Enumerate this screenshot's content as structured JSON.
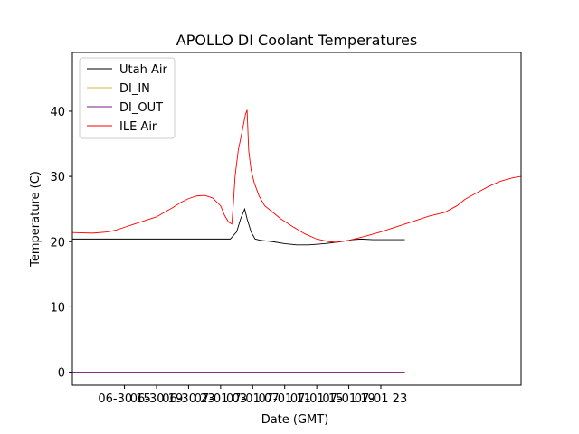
{
  "chart_data": {
    "type": "line",
    "title": "APOLLO DI Coolant Temperatures",
    "xlabel": "Date (GMT)",
    "ylabel": "Temperature (C)",
    "xlim": [
      -6.5,
      49.5
    ],
    "ylim": [
      -2,
      49
    ],
    "y_ticks": [
      0,
      10,
      20,
      30,
      40
    ],
    "x_ticks": [
      {
        "value": 0,
        "label": "06-30 15"
      },
      {
        "value": 4,
        "label": "06-30 19"
      },
      {
        "value": 8,
        "label": "06-30 23"
      },
      {
        "value": 12,
        "label": "07-01 03"
      },
      {
        "value": 16,
        "label": "07-01 07"
      },
      {
        "value": 20,
        "label": "07-01 11"
      },
      {
        "value": 24,
        "label": "07-01 15"
      },
      {
        "value": 28,
        "label": "07-01 19"
      },
      {
        "value": 32,
        "label": "07-01 23"
      }
    ],
    "legend_position": "top-left",
    "series": [
      {
        "name": "Utah Air",
        "color": "#000000",
        "points": [
          [
            -6.5,
            20.4
          ],
          [
            -2,
            20.4
          ],
          [
            0,
            20.4
          ],
          [
            2,
            20.4
          ],
          [
            4,
            20.4
          ],
          [
            6,
            20.4
          ],
          [
            8,
            20.4
          ],
          [
            10,
            20.4
          ],
          [
            12,
            20.4
          ],
          [
            13.2,
            20.4
          ],
          [
            14,
            21.5
          ],
          [
            14.5,
            23.5
          ],
          [
            15,
            25.0
          ],
          [
            15.3,
            23.5
          ],
          [
            15.8,
            21.5
          ],
          [
            16.3,
            20.4
          ],
          [
            17,
            20.2
          ],
          [
            18.5,
            20.0
          ],
          [
            20,
            19.7
          ],
          [
            21.5,
            19.5
          ],
          [
            23,
            19.5
          ],
          [
            25,
            19.7
          ],
          [
            27,
            20.0
          ],
          [
            28.5,
            20.3
          ],
          [
            29.5,
            20.4
          ],
          [
            31,
            20.3
          ],
          [
            33,
            20.3
          ],
          [
            35,
            20.3
          ]
        ]
      },
      {
        "name": "DI_IN",
        "color": "#d4b44a",
        "points": [
          [
            -6.5,
            0
          ],
          [
            35,
            0
          ]
        ]
      },
      {
        "name": "DI_OUT",
        "color": "#7b1a8a",
        "points": [
          [
            -6.5,
            0
          ],
          [
            35,
            0
          ]
        ]
      },
      {
        "name": "ILE Air",
        "color": "#ff0000",
        "points": [
          [
            -6.5,
            21.4
          ],
          [
            -4,
            21.3
          ],
          [
            -2,
            21.5
          ],
          [
            -1,
            21.8
          ],
          [
            0,
            22.2
          ],
          [
            1,
            22.6
          ],
          [
            2,
            23.0
          ],
          [
            3,
            23.4
          ],
          [
            4,
            23.8
          ],
          [
            5,
            24.5
          ],
          [
            6,
            25.2
          ],
          [
            7,
            26.0
          ],
          [
            8,
            26.6
          ],
          [
            9,
            27.0
          ],
          [
            10,
            27.1
          ],
          [
            11,
            26.7
          ],
          [
            12,
            25.5
          ],
          [
            12.5,
            24.0
          ],
          [
            13,
            23.0
          ],
          [
            13.4,
            22.7
          ],
          [
            13.6,
            26.0
          ],
          [
            13.8,
            30.0
          ],
          [
            14.2,
            34.0
          ],
          [
            14.7,
            37.0
          ],
          [
            15.1,
            39.5
          ],
          [
            15.3,
            40.2
          ],
          [
            15.5,
            34.0
          ],
          [
            15.8,
            31.0
          ],
          [
            16.2,
            29.0
          ],
          [
            16.8,
            27.0
          ],
          [
            17.5,
            25.5
          ],
          [
            18.5,
            24.5
          ],
          [
            19.5,
            23.5
          ],
          [
            21,
            22.3
          ],
          [
            22.5,
            21.2
          ],
          [
            24,
            20.4
          ],
          [
            25.5,
            20.0
          ],
          [
            26.5,
            19.9
          ],
          [
            28,
            20.2
          ],
          [
            30,
            20.8
          ],
          [
            32,
            21.5
          ],
          [
            34,
            22.3
          ],
          [
            36,
            23.1
          ],
          [
            38,
            23.9
          ],
          [
            40,
            24.5
          ],
          [
            41.5,
            25.5
          ],
          [
            42.5,
            26.5
          ],
          [
            44,
            27.5
          ],
          [
            45.5,
            28.5
          ],
          [
            47,
            29.3
          ],
          [
            48.5,
            29.8
          ],
          [
            49.5,
            30.0
          ]
        ]
      }
    ]
  }
}
